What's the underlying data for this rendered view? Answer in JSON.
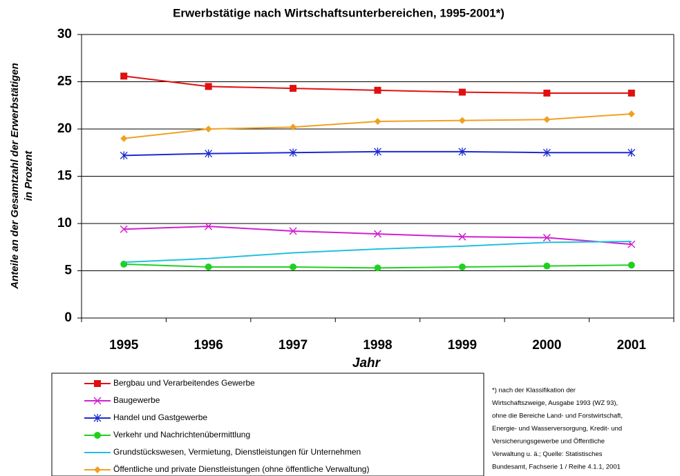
{
  "chart_data": {
    "type": "line",
    "title": "Erwerbstätige nach Wirtschaftsunterbereichen, 1995-2001*)",
    "y_label": [
      "Anteile an der Gesamtzahl der Erwerbstätigen",
      "in Prozent"
    ],
    "x_label": "Jahr",
    "categories": [
      "1995",
      "1996",
      "1997",
      "1998",
      "1999",
      "2000",
      "2001"
    ],
    "ylim": [
      0,
      30
    ],
    "yticks": [
      0,
      5,
      10,
      15,
      20,
      25,
      30
    ],
    "grid": true,
    "series": [
      {
        "name": "Bergbau und Verarbeitendes Gewerbe",
        "color": "#e01010",
        "marker": "square",
        "values": [
          25.6,
          24.5,
          24.3,
          24.1,
          23.9,
          23.8,
          23.8
        ]
      },
      {
        "name": "Baugewerbe",
        "color": "#d020d0",
        "marker": "x",
        "values": [
          9.4,
          9.7,
          9.2,
          8.9,
          8.6,
          8.5,
          7.8
        ]
      },
      {
        "name": "Handel und Gastgewerbe",
        "color": "#1a2ad0",
        "marker": "star",
        "values": [
          17.2,
          17.4,
          17.5,
          17.6,
          17.6,
          17.5,
          17.5
        ]
      },
      {
        "name": "Verkehr und Nachrichtenübermittlung",
        "color": "#20d020",
        "marker": "circle",
        "values": [
          5.7,
          5.4,
          5.4,
          5.3,
          5.4,
          5.5,
          5.6
        ]
      },
      {
        "name": "Grundstückswesen, Vermietung, Dienstleistungen für Unternehmen",
        "color": "#20c0e0",
        "marker": "none",
        "values": [
          5.9,
          6.3,
          6.9,
          7.3,
          7.6,
          8.0,
          8.1
        ]
      },
      {
        "name": "Öffentliche und private Dienstleistungen (ohne öffentliche Verwaltung)",
        "color": "#f0a020",
        "marker": "diamond",
        "values": [
          19.0,
          20.0,
          20.2,
          20.8,
          20.9,
          21.0,
          21.6
        ]
      }
    ],
    "footnote": [
      "*) nach der Klassifikation der",
      "Wirtschaftszweige, Ausgabe 1993 (WZ 93),",
      "ohne die Bereiche Land- und Forstwirtschaft,",
      "Energie- und Wasserversorgung, Kredit- und",
      "Versicherungsgewerbe und Öffentliche",
      "Verwaltung u. ä.; Quelle: Statistisches",
      "Bundesamt, Fachserie 1 / Reihe 4.1.1, 2001"
    ]
  }
}
